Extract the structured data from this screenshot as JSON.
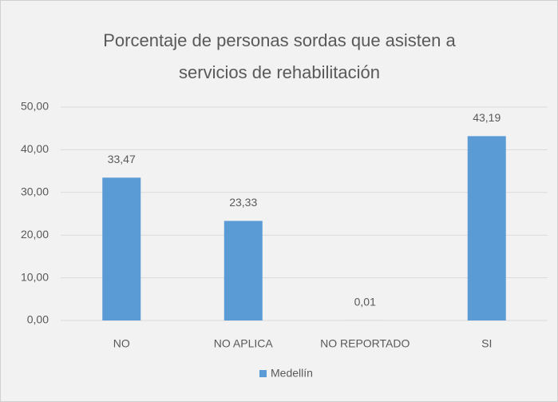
{
  "chart_data": {
    "type": "bar",
    "title": "Porcentaje de personas sordas que asisten a servicios de rehabilitación",
    "categories": [
      "NO",
      "NO APLICA",
      "NO REPORTADO",
      "SI"
    ],
    "series": [
      {
        "name": "Medellín",
        "color": "#5b9bd5",
        "values": [
          33.47,
          23.33,
          0.01,
          43.19
        ],
        "value_labels": [
          "33,47",
          "23,33",
          "0,01",
          "43,19"
        ]
      }
    ],
    "ylim": [
      0,
      50
    ],
    "yticks": [
      {
        "value": 0,
        "label": "0,00"
      },
      {
        "value": 10,
        "label": "10,00"
      },
      {
        "value": 20,
        "label": "20,00"
      },
      {
        "value": 30,
        "label": "30,00"
      },
      {
        "value": 40,
        "label": "40,00"
      },
      {
        "value": 50,
        "label": "50,00"
      }
    ],
    "grid": true,
    "legend": "bottom"
  }
}
